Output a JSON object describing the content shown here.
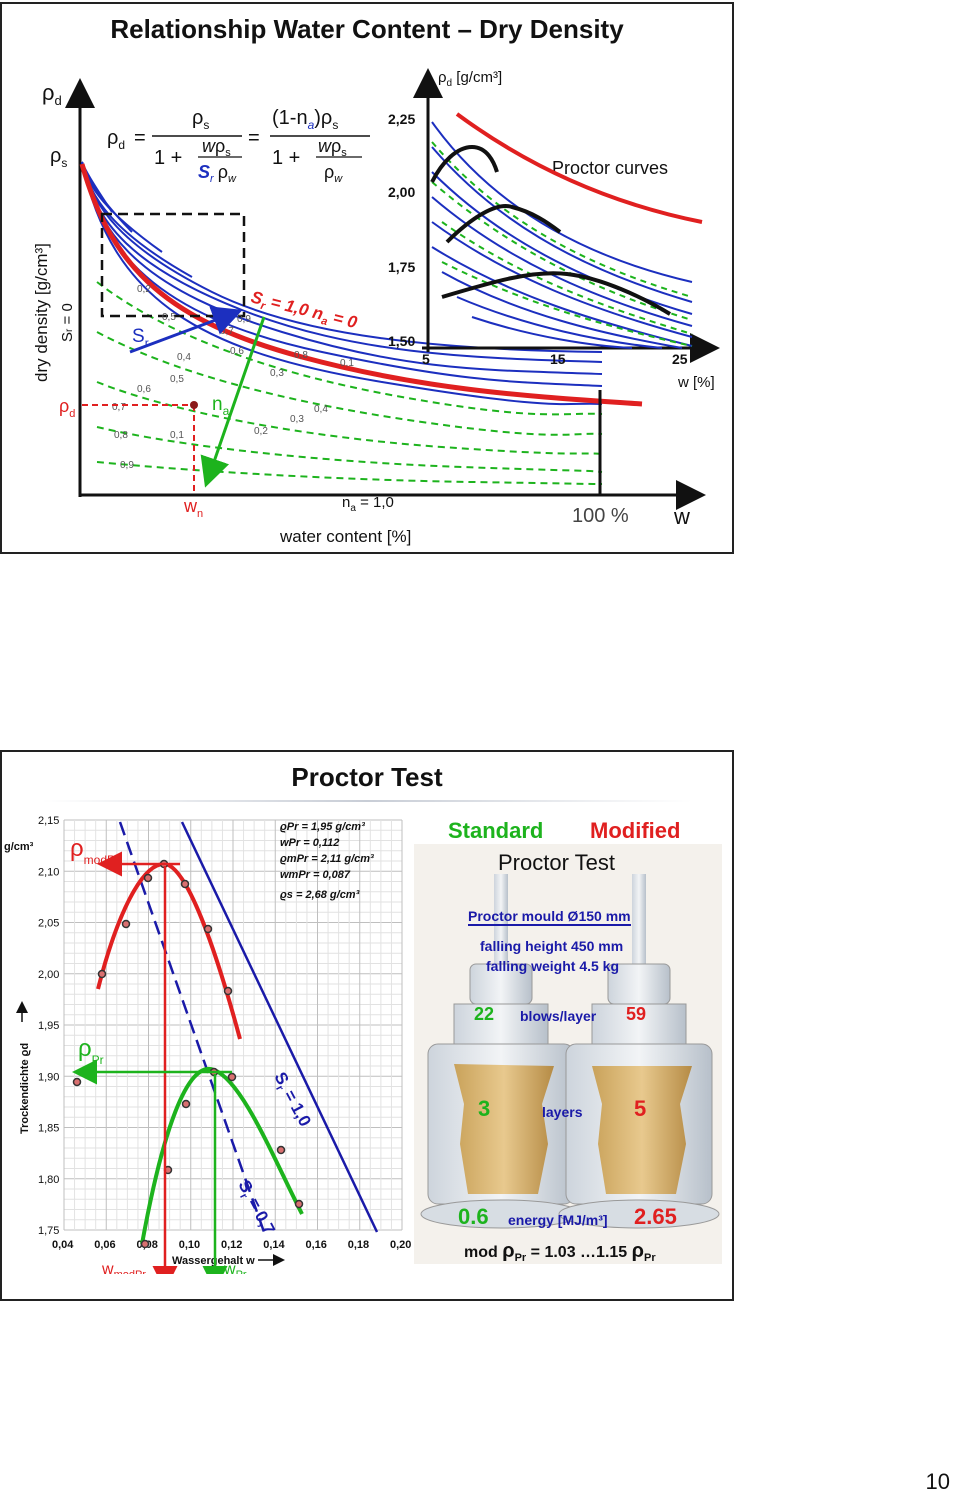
{
  "page_number": "10",
  "slide1": {
    "title": "Relationship Water Content – Dry Density",
    "y_axis_label": "dry density   [g/cm³]",
    "sr_zero_label": "S",
    "sr_zero_sub": "r",
    "sr_zero_eq": " = 0",
    "rho": "ρ",
    "sub_d": "d",
    "sub_s": "s",
    "formula": {
      "lhs": "ρ",
      "lhs_sub": "d",
      "eq": "=",
      "num1": "ρ",
      "num1_sub": "s",
      "den_one": "1 +",
      "den_w": "w",
      "den_rho": "ρ",
      "den_rho_sub": "s",
      "den_sr": "S",
      "den_sr_sub": "r",
      "den_rhow": "ρ",
      "den_rhow_sub": "w",
      "num2": "(1-n",
      "num2_sub": "a",
      "num2_end": ")ρ",
      "num2_end_sub": "s"
    },
    "sr_line_label": "S",
    "sr_line_sub": "r",
    "sr_line_val": " = 1,0  n",
    "sr_line_sub2": "a",
    "sr_line_val2": " = 0",
    "label_sr": "S",
    "label_sr_sub": "r",
    "label_na": "n",
    "label_na_sub": "a",
    "wn_label": "w",
    "wn_sub": "n",
    "na_one_label": "n",
    "na_one_sub": "a",
    "na_one_val": " = 1,0",
    "x_axis_label": "water content   [%]",
    "hundred": "100 %",
    "w_axis": "w",
    "sr_values": [
      "0,2",
      "0,5",
      "0,7",
      "0,9",
      "0,4",
      "0,6",
      "0,8",
      "0,5",
      "0,3",
      "0,1",
      "0,6",
      "0,7",
      "0,4",
      "0,8",
      "0,1",
      "0,3",
      "0,2",
      "0,9"
    ],
    "inset": {
      "y_label": "ρ",
      "y_label_sub": "d",
      "y_unit": " [g/cm³]",
      "y_ticks": [
        "2,25",
        "2,00",
        "1,75",
        "1,50"
      ],
      "x_ticks": [
        "5",
        "15",
        "25"
      ],
      "x_label": "w [%]",
      "caption": "Proctor curves"
    }
  },
  "slide2": {
    "title": "Proctor Test",
    "chart": {
      "y_unit": "g/cm³",
      "y_ticks": [
        "2,15",
        "2,10",
        "2,05",
        "2,00",
        "1,95",
        "1,90",
        "1,85",
        "1,80",
        "1,75"
      ],
      "x_ticks": [
        "0,04",
        "0,06",
        "0,08",
        "0,10",
        "0,12",
        "0,14",
        "0,16",
        "0,18",
        "0,20"
      ],
      "y_axis_label": "Trockendichte  ϱd",
      "x_axis_label": "Wassergehalt  w",
      "legend": [
        "ϱPr   = 1,95 g/cm³",
        "wPr   = 0,112",
        "ϱmPr = 2,11 g/cm³",
        "wmPr = 0,087",
        "ϱs     = 2,68 g/cm³"
      ],
      "rho_modpr": "ρ",
      "rho_modpr_sub": "modPr",
      "rho_pr": "ρ",
      "rho_pr_sub": "Pr",
      "sr_10": "S",
      "sr_10_sub": "r",
      "sr_10_val": " = 1,0",
      "sr_07": "S",
      "sr_07_sub": "r",
      "sr_07_val": " = 0,7",
      "w_modpr": "w",
      "w_modpr_sub": "modPr",
      "w_pr": "w",
      "w_pr_sub": "Pr"
    },
    "right": {
      "standard": "Standard",
      "modified": "Modified",
      "proctor_test": "Proctor Test",
      "mould": "Proctor mould   Ø150 mm",
      "falling_height": "falling height 450 mm",
      "falling_weight": "falling weight 4.5 kg",
      "blows_std": "22",
      "blows_label": "blows/layer",
      "blows_mod": "59",
      "layers_std": "3",
      "layers_label": "layers",
      "layers_mod": "5",
      "energy_std": "0.6",
      "energy_label": "energy [MJ/m³]",
      "energy_mod": "2.65",
      "mod_prefix": "mod ",
      "mod_rho": "ρ",
      "mod_rho_sub": "Pr",
      "mod_mid": " = 1.03 …1.15 ",
      "mod_rho2": "ρ",
      "mod_rho2_sub": "Pr"
    },
    "colors": {
      "red": "#e02020",
      "green": "#1db31d",
      "blue": "#1c2fbf",
      "darkblue": "#1a1aa8"
    }
  }
}
